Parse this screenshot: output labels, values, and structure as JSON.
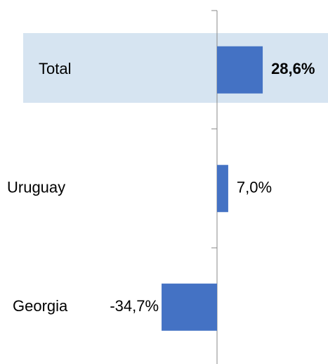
{
  "chart_data": {
    "type": "barh",
    "categories": [
      "Total",
      "Uruguay",
      "Georgia"
    ],
    "values": [
      28.6,
      7.0,
      -34.7
    ],
    "value_labels": [
      "28,6%",
      "7,0%",
      "-34,7%"
    ],
    "color": "#4472c4",
    "xlim": [
      -40,
      40
    ]
  }
}
